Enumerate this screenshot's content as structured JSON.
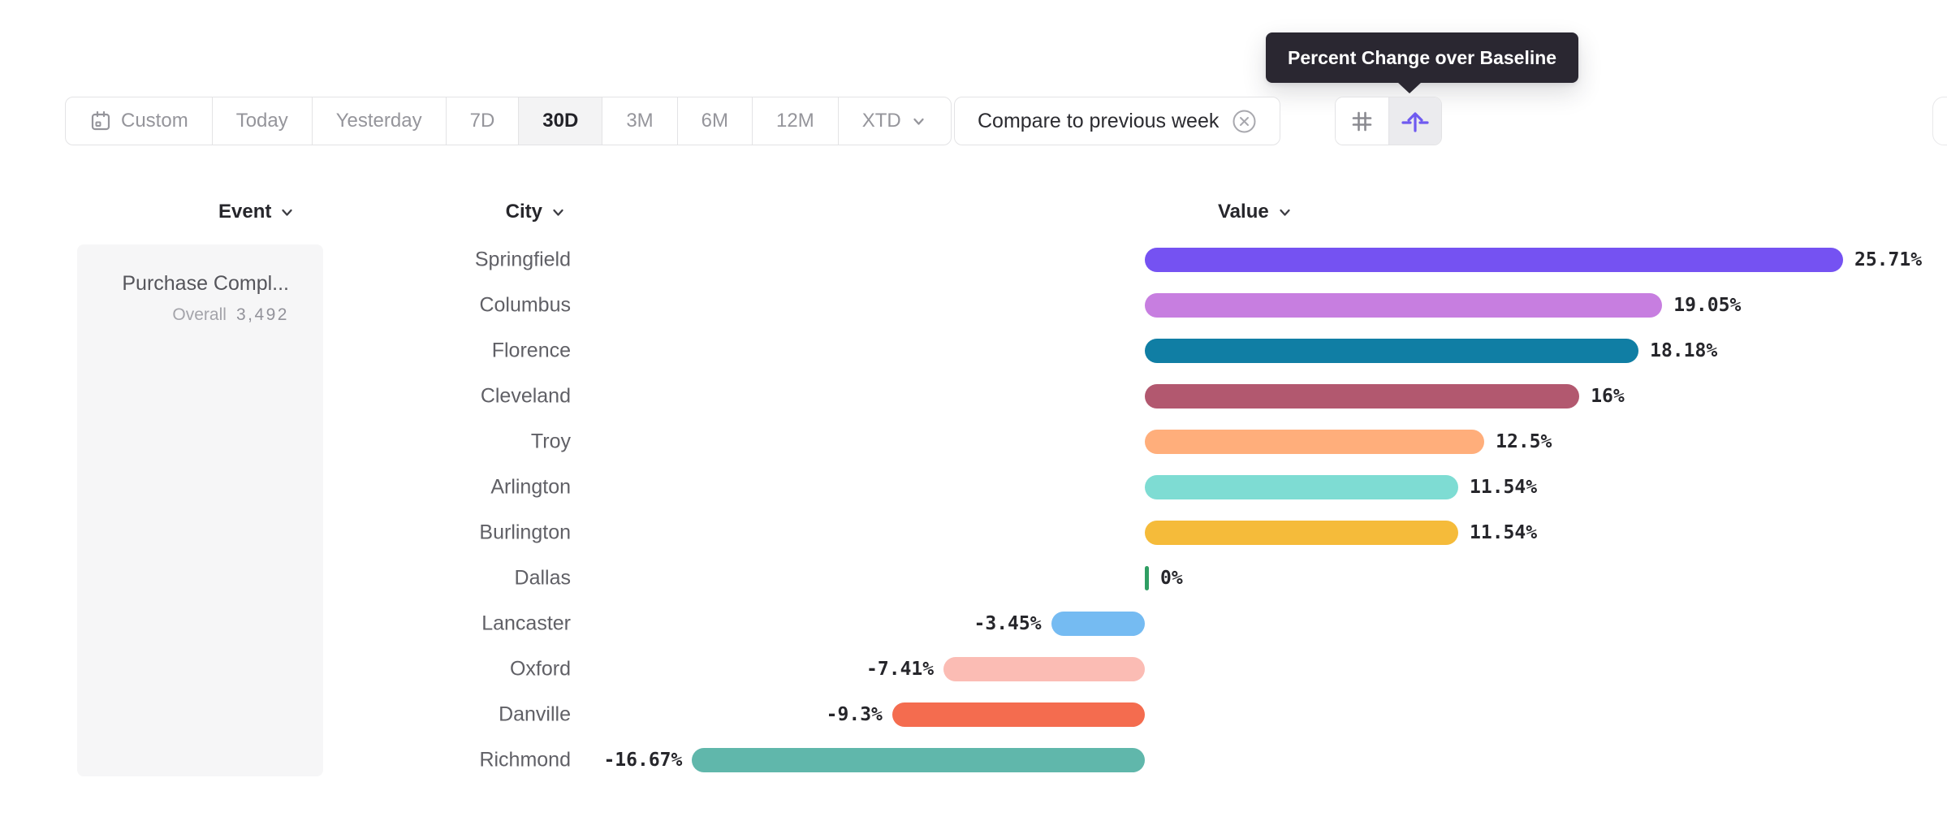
{
  "tooltip": {
    "text": "Percent Change over Baseline"
  },
  "toolbar": {
    "date_ranges": [
      {
        "id": "custom",
        "label": "Custom",
        "has_calendar_icon": true,
        "has_chevron": false,
        "active": false
      },
      {
        "id": "today",
        "label": "Today",
        "has_calendar_icon": false,
        "has_chevron": false,
        "active": false
      },
      {
        "id": "yesterday",
        "label": "Yesterday",
        "has_calendar_icon": false,
        "has_chevron": false,
        "active": false
      },
      {
        "id": "7d",
        "label": "7D",
        "has_calendar_icon": false,
        "has_chevron": false,
        "active": false
      },
      {
        "id": "30d",
        "label": "30D",
        "has_calendar_icon": false,
        "has_chevron": false,
        "active": true
      },
      {
        "id": "3m",
        "label": "3M",
        "has_calendar_icon": false,
        "has_chevron": false,
        "active": false
      },
      {
        "id": "6m",
        "label": "6M",
        "has_calendar_icon": false,
        "has_chevron": false,
        "active": false
      },
      {
        "id": "12m",
        "label": "12M",
        "has_calendar_icon": false,
        "has_chevron": false,
        "active": false
      },
      {
        "id": "xtd",
        "label": "XTD",
        "has_calendar_icon": false,
        "has_chevron": true,
        "active": false
      }
    ],
    "compare_chip": {
      "label": "Compare to previous week",
      "close_icon": "x-circle-icon"
    },
    "view_toggles": [
      {
        "id": "values",
        "icon": "grid-icon",
        "active": false
      },
      {
        "id": "percent-change",
        "icon": "percent-change-baseline-icon",
        "active": true
      }
    ]
  },
  "table": {
    "columns": [
      {
        "label": "Event"
      },
      {
        "label": "City"
      },
      {
        "label": "Value"
      }
    ]
  },
  "event_panel": {
    "title": "Purchase Compl...",
    "overall_label": "Overall",
    "overall_value": "3,492"
  },
  "chart_data": {
    "type": "bar",
    "orientation": "horizontal",
    "title": "",
    "xlabel": "",
    "ylabel": "City",
    "unit": "%",
    "grid": false,
    "xlim": [
      -16.67,
      25.71
    ],
    "categories": [
      "Springfield",
      "Columbus",
      "Florence",
      "Cleveland",
      "Troy",
      "Arlington",
      "Burlington",
      "Dallas",
      "Lancaster",
      "Oxford",
      "Danville",
      "Richmond"
    ],
    "values": [
      25.71,
      19.05,
      18.18,
      16,
      12.5,
      11.54,
      11.54,
      0,
      -3.45,
      -7.41,
      -9.3,
      -16.67
    ],
    "value_labels": [
      "25.71%",
      "19.05%",
      "18.18%",
      "16%",
      "12.5%",
      "11.54%",
      "11.54%",
      "0%",
      "-3.45%",
      "-7.41%",
      "-9.3%",
      "-16.67%"
    ],
    "bar_colors": [
      "#7552f2",
      "#c77ee0",
      "#107ea4",
      "#b2586f",
      "#ffae7b",
      "#7edcd3",
      "#f5bb3a",
      "#2f9e63",
      "#75bbf2",
      "#fbbcb4",
      "#f46c4f",
      "#60b7ab"
    ]
  },
  "colors": {
    "accent_purple": "#6f5af0",
    "toolbar_border": "#e3e3e5",
    "muted_text": "#95959b",
    "dark_text": "#26262b",
    "city_text": "#606066",
    "panel_bg": "#f6f6f7",
    "active_segment_bg": "#f3f3f4",
    "tooltip_bg": "#2a2731",
    "zero_tick_green": "#2f9e63"
  }
}
